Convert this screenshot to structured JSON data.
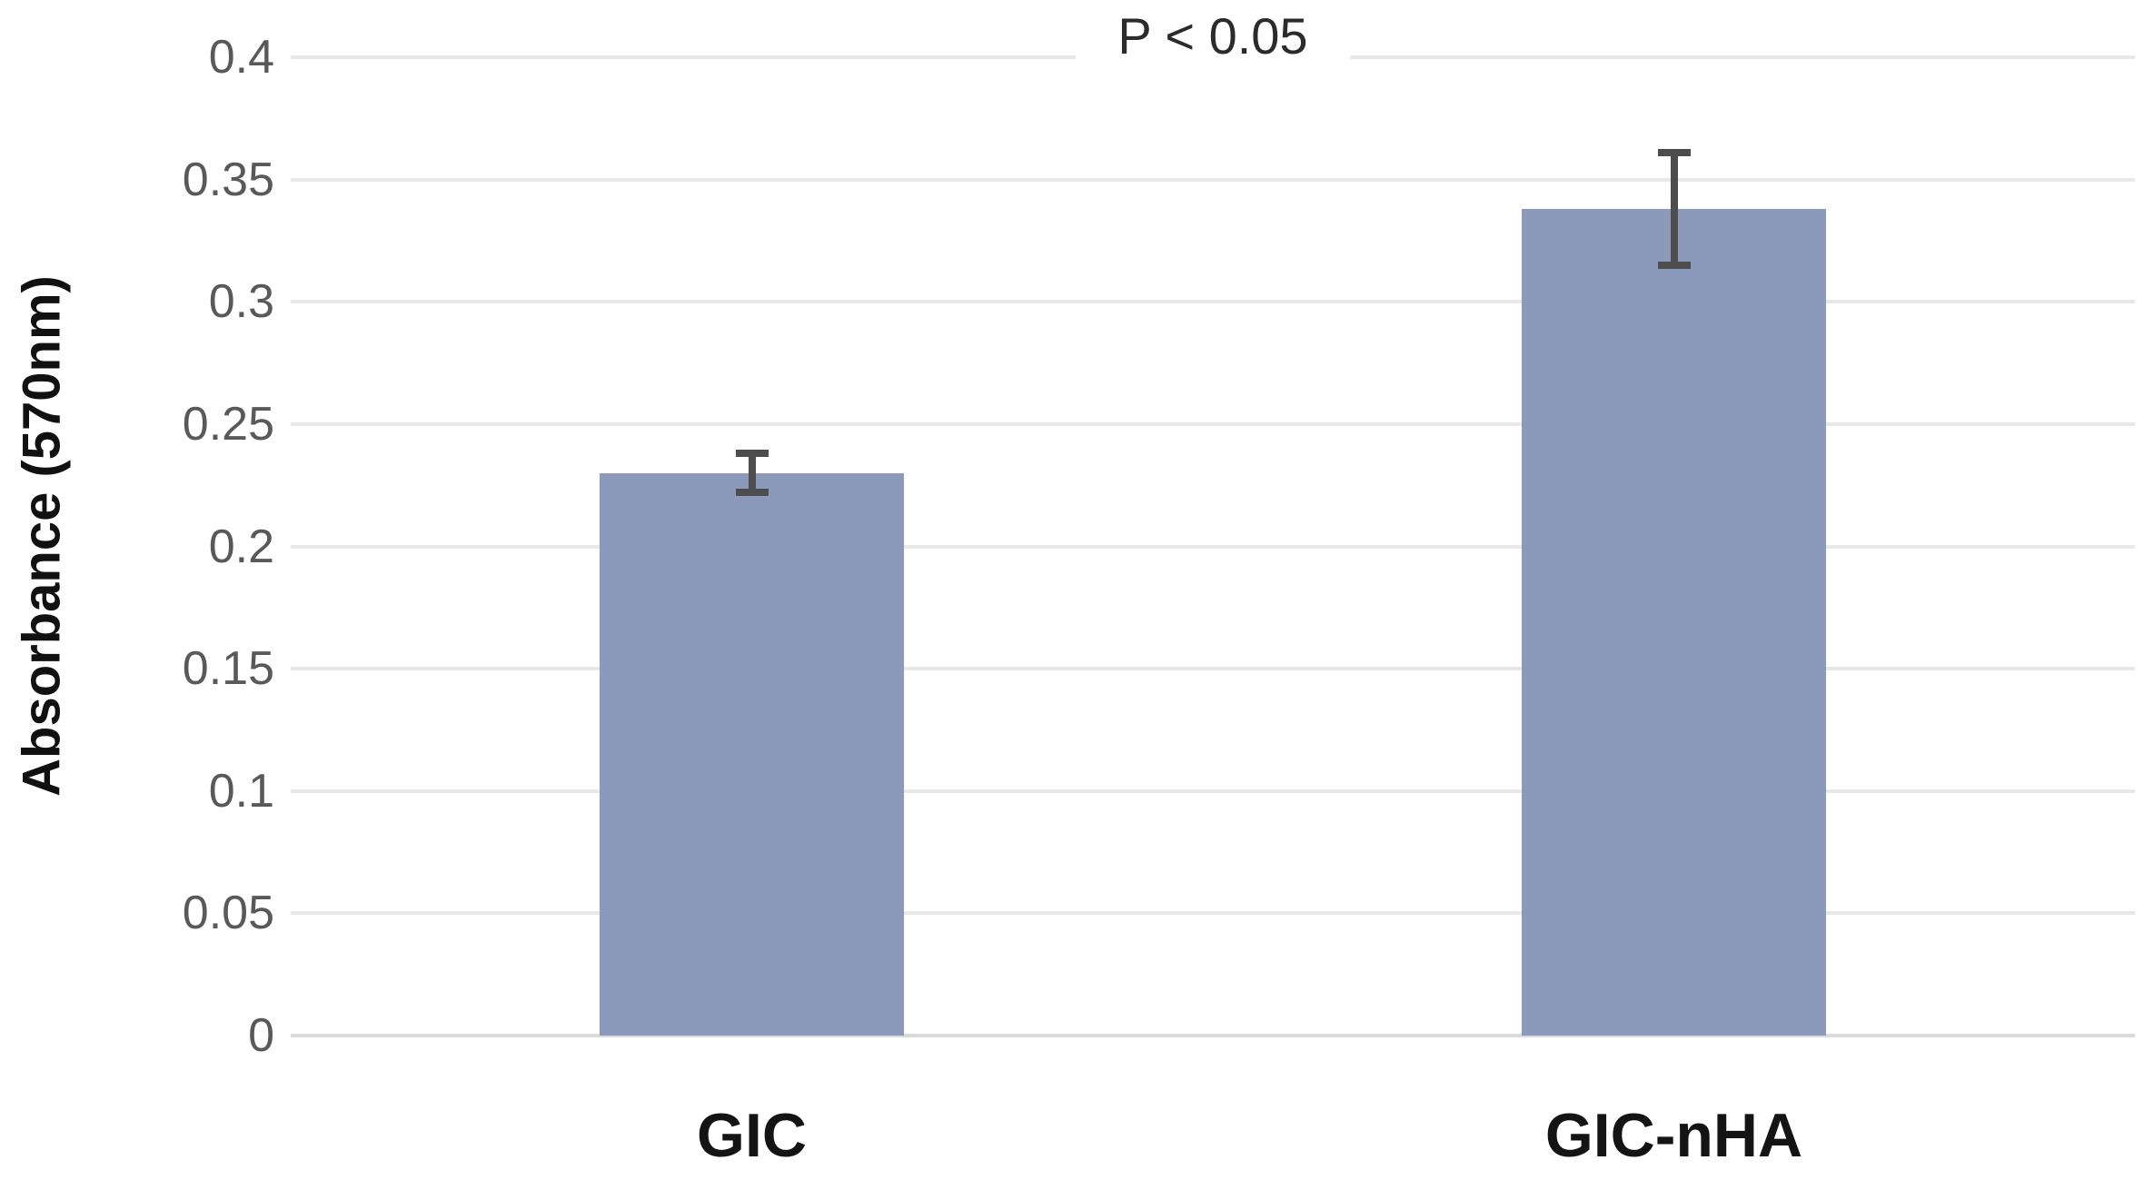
{
  "figure": {
    "annotation": "P < 0.05",
    "y_axis_title": "Absorbance (570nm)"
  },
  "chart_data": {
    "type": "bar",
    "title": "P < 0.05",
    "xlabel": "",
    "ylabel": "Absorbance (570nm)",
    "categories": [
      "GIC",
      "GIC-nHA"
    ],
    "values": [
      0.23,
      0.338
    ],
    "errors": [
      0.008,
      0.023
    ],
    "ylim": [
      0,
      0.4
    ],
    "yticks": [
      0,
      0.05,
      0.1,
      0.15,
      0.2,
      0.25,
      0.3,
      0.35,
      0.4
    ],
    "ytick_labels": [
      "0",
      "0.05",
      "0.1",
      "0.15",
      "0.2",
      "0.25",
      "0.3",
      "0.35",
      "0.4"
    ],
    "grid": true,
    "legend": false,
    "annotation_position": "top-center",
    "colors": {
      "bar": "#8b99bb",
      "error_bar": "#4d4d4d",
      "gridline": "#e8e8e8",
      "baseline": "#dadada",
      "tick_label": "#595959",
      "category_label": "#141414",
      "axis_title": "#111111",
      "annotation": "#2b2b2b"
    }
  }
}
